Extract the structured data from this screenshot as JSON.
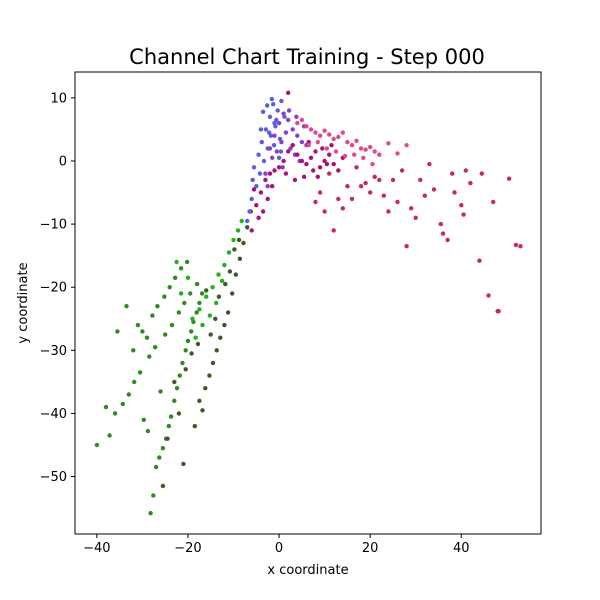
{
  "chart_data": {
    "type": "scatter",
    "title": "Channel Chart Training - Step 000",
    "xlabel": "x coordinate",
    "ylabel": "y coordinate",
    "xlim": [
      -44.8,
      57.5
    ],
    "ylim": [
      -59.1,
      14.1
    ],
    "x_ticks": [
      -40,
      -20,
      0,
      20,
      40
    ],
    "y_ticks": [
      -50,
      -40,
      -30,
      -20,
      -10,
      0,
      10
    ],
    "x_tick_labels": [
      "−40",
      "−20",
      "0",
      "20",
      "40"
    ],
    "y_tick_labels": [
      "−50",
      "−40",
      "−30",
      "−20",
      "−10",
      "0",
      "10"
    ],
    "grid": false,
    "legend": "none",
    "colors": {
      "green": "#2e8b1e",
      "dark_green": "#3a5a2a",
      "bright_green": "#22b020",
      "blue": "#5a5de0",
      "purple": "#8a3ec8",
      "magenta": "#a8107c",
      "pink": "#e04a8c",
      "crimson": "#c8285a"
    },
    "series": [
      {
        "color_key": "green",
        "x": [
          -40.0,
          -38.0,
          -37.2,
          -36.0,
          -34.3,
          -33.0,
          -31.8,
          -30.5,
          -29.7,
          -28.8,
          -28.2,
          -27.6,
          -27.0,
          -26.3,
          -25.5,
          -24.8,
          -24.2,
          -23.7,
          -23.0,
          -22.4,
          -21.8,
          -21.2,
          -20.5,
          -20.0,
          -19.3,
          -18.8,
          -18.1,
          -17.5,
          -16.9,
          -26.0,
          -28.5,
          -27.2,
          -25.0,
          -23.5,
          -22.0,
          -20.8,
          -19.5,
          -18.0,
          -29.0,
          -30.0,
          -31.0,
          -27.8,
          -26.7,
          -25.2,
          -24.0,
          -22.8,
          -21.5,
          -20.2,
          -35.5,
          -33.5,
          -32.0
        ],
        "y": [
          -45.0,
          -39.0,
          -43.5,
          -40.0,
          -38.5,
          -37.0,
          -35.0,
          -33.5,
          -41.0,
          -42.8,
          -55.8,
          -53.0,
          -48.5,
          -47.0,
          -45.5,
          -44.0,
          -42.0,
          -40.5,
          -38.0,
          -36.0,
          -34.0,
          -32.0,
          -30.0,
          -28.5,
          -27.0,
          -25.5,
          -24.0,
          -22.5,
          -21.0,
          -36.5,
          -31.0,
          -29.5,
          -27.5,
          -26.0,
          -24.0,
          -22.5,
          -21.0,
          -19.5,
          -28.0,
          -27.0,
          -26.0,
          -24.5,
          -23.0,
          -21.5,
          -20.0,
          -18.5,
          -17.0,
          -16.0,
          -27.0,
          -23.0,
          -30.0
        ]
      },
      {
        "color_key": "dark_green",
        "x": [
          -17.5,
          -16.2,
          -15.3,
          -14.5,
          -13.7,
          -12.9,
          -12.0,
          -11.2,
          -10.3,
          -9.5,
          -8.6,
          -7.8,
          -7.0,
          -6.2,
          -22.0,
          -21.0,
          -15.0,
          -14.0,
          -24.5,
          -18.5,
          -16.8,
          -13.2,
          -11.8,
          -10.8,
          -9.8,
          -8.8,
          -20.5,
          -19.2,
          -23.0,
          -17.8,
          -16.0,
          -25.5
        ],
        "y": [
          -38.0,
          -36.0,
          -34.0,
          -32.0,
          -30.0,
          -28.0,
          -26.0,
          -24.0,
          -21.0,
          -18.0,
          -15.5,
          -13.0,
          -10.5,
          -8.0,
          -40.0,
          -48.0,
          -27.5,
          -25.0,
          -44.0,
          -42.0,
          -39.5,
          -21.5,
          -19.5,
          -17.5,
          -14.0,
          -12.5,
          -33.0,
          -30.5,
          -35.0,
          -29.0,
          -20.5,
          -51.5
        ]
      },
      {
        "color_key": "bright_green",
        "x": [
          -19.0,
          -17.5,
          -16.0,
          -14.6,
          -13.3,
          -12.0,
          -11.0,
          -10.0,
          -21.5,
          -20.0,
          -18.3,
          -16.8,
          -15.2,
          -13.8,
          -12.5,
          -22.5,
          -9.0,
          -8.2
        ],
        "y": [
          -25.0,
          -23.5,
          -21.5,
          -20.0,
          -18.0,
          -16.5,
          -14.5,
          -12.5,
          -21.0,
          -18.5,
          -28.0,
          -26.0,
          -24.5,
          -22.5,
          -19.0,
          -16.0,
          -11.0,
          -9.5
        ]
      },
      {
        "color_key": "blue",
        "x": [
          -6.0,
          -5.0,
          -4.2,
          -3.3,
          -2.5,
          -1.8,
          -1.0,
          -0.3,
          0.5,
          1.2,
          -5.5,
          -4.5,
          -3.8,
          -2.9,
          -2.0,
          -1.3,
          -0.6,
          0.2,
          -3.5,
          -2.6,
          -1.6,
          -0.8,
          0.4,
          -4.0,
          -2.2,
          -1.1,
          0.0,
          -6.5,
          -7.0,
          -5.8
        ],
        "y": [
          -6.0,
          -4.0,
          -2.0,
          0.0,
          2.0,
          4.0,
          6.0,
          8.0,
          9.5,
          7.0,
          -1.0,
          1.0,
          3.0,
          5.0,
          7.0,
          9.0,
          6.5,
          3.5,
          7.8,
          8.8,
          9.8,
          5.5,
          1.5,
          5.0,
          4.5,
          2.5,
          0.5,
          -8.0,
          -9.5,
          -3.0
        ]
      },
      {
        "color_key": "purple",
        "x": [
          -2.0,
          -1.0,
          0.0,
          1.0,
          2.0,
          3.0,
          4.0,
          5.0,
          -1.5,
          -0.5,
          0.5,
          1.5,
          2.5,
          3.5,
          4.5,
          -3.0,
          -2.5,
          0.8,
          2.2,
          3.8,
          5.5,
          6.0
        ],
        "y": [
          2.0,
          4.0,
          6.0,
          7.5,
          6.5,
          5.0,
          4.0,
          3.0,
          0.5,
          1.5,
          3.0,
          4.5,
          2.0,
          1.0,
          0.0,
          -2.0,
          -4.0,
          -1.0,
          8.0,
          7.0,
          5.5,
          2.5
        ]
      },
      {
        "color_key": "magenta",
        "x": [
          -5.0,
          -4.0,
          -3.0,
          -2.0,
          -1.0,
          0.0,
          1.0,
          2.0,
          3.0,
          4.0,
          5.0,
          6.0,
          7.0,
          8.0,
          9.0,
          10.0,
          11.0,
          12.0,
          13.0,
          14.0,
          -4.5,
          -3.5,
          -2.5,
          -1.5,
          1.5,
          3.5,
          5.5,
          7.5,
          9.5,
          11.5,
          -6.0,
          -5.5,
          2.0,
          6.5,
          8.5,
          10.5
        ],
        "y": [
          -7.0,
          -5.0,
          -3.0,
          -2.0,
          -1.5,
          -1.0,
          0.0,
          1.5,
          2.5,
          1.0,
          0.0,
          -0.5,
          0.5,
          1.5,
          -1.0,
          0.0,
          1.0,
          -0.5,
          -1.5,
          0.5,
          -9.0,
          -8.0,
          -6.0,
          -4.0,
          -2.0,
          -3.0,
          -2.5,
          -1.5,
          2.0,
          2.5,
          -11.0,
          -4.5,
          10.8,
          3.0,
          -2.5,
          -0.5
        ]
      },
      {
        "color_key": "pink",
        "x": [
          4.0,
          5.0,
          6.0,
          7.0,
          8.0,
          9.0,
          10.0,
          11.0,
          12.0,
          13.0,
          14.0,
          15.0,
          16.0,
          17.0,
          18.0,
          19.0,
          20.0,
          21.0,
          22.0,
          24.0,
          26.0,
          28.0,
          6.5,
          8.5,
          10.5,
          12.5,
          14.5,
          16.5,
          18.5,
          20.5
        ],
        "y": [
          6.0,
          6.5,
          5.5,
          5.0,
          4.5,
          4.0,
          4.8,
          4.2,
          3.5,
          3.8,
          4.5,
          3.0,
          2.5,
          3.2,
          2.0,
          1.8,
          2.2,
          1.5,
          1.0,
          2.8,
          1.2,
          2.5,
          2.5,
          3.0,
          2.0,
          1.5,
          0.8,
          1.0,
          0.5,
          -0.5
        ]
      },
      {
        "color_key": "crimson",
        "x": [
          10.0,
          12.0,
          14.0,
          16.0,
          18.0,
          20.0,
          22.0,
          24.0,
          26.0,
          28.0,
          30.0,
          32.0,
          34.0,
          36.0,
          38.0,
          40.0,
          42.0,
          44.0,
          46.0,
          48.0,
          50.5,
          52.0,
          53.0,
          47.0,
          48.2,
          40.5,
          37.0,
          35.5,
          31.0,
          29.0,
          27.0,
          25.0,
          23.0,
          21.0,
          19.0,
          17.0,
          15.0,
          13.0,
          11.0,
          9.0,
          8.0,
          44.5,
          41.0,
          33.0,
          38.5
        ],
        "y": [
          -8.0,
          -11.0,
          -7.5,
          -6.0,
          -4.0,
          -5.0,
          -3.0,
          -8.0,
          -6.5,
          -13.5,
          -9.0,
          -5.5,
          -4.5,
          -11.5,
          -2.0,
          -7.0,
          -3.5,
          -15.8,
          -21.3,
          -23.8,
          -2.8,
          -13.3,
          -13.5,
          -6.5,
          -23.8,
          -8.5,
          -12.5,
          -10.0,
          -3.0,
          -7.5,
          -1.5,
          -3.0,
          -5.5,
          -2.5,
          -3.5,
          -1.0,
          -4.0,
          -6.0,
          -2.0,
          -5.0,
          -6.5,
          -2.0,
          -1.5,
          -0.5,
          -5.0
        ]
      }
    ]
  }
}
